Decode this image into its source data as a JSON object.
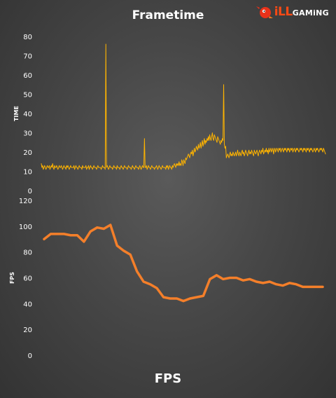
{
  "logo": {
    "prefix": "iLL",
    "suffix": "GAMiNG"
  },
  "chart_data": [
    {
      "type": "line",
      "title": "Frametime",
      "ylabel": "TIME",
      "xlabel": "",
      "ylim": [
        0,
        80
      ],
      "yticks": [
        0,
        10,
        20,
        30,
        40,
        50,
        60,
        70,
        80
      ],
      "grid": false,
      "legend": "none",
      "color": "#ffb400",
      "series": [
        {
          "values": [
            14,
            12,
            13,
            11,
            12,
            13,
            12,
            11,
            12,
            13,
            12,
            12,
            13,
            11,
            12,
            13,
            12,
            14,
            12,
            11,
            13,
            12,
            12,
            13,
            12,
            11,
            12,
            13,
            12,
            12,
            13,
            12,
            11,
            12,
            13,
            12,
            12,
            11,
            13,
            12,
            13,
            12,
            11,
            12,
            13,
            12,
            12,
            12,
            12,
            13,
            11,
            12,
            13,
            12,
            12,
            11,
            12,
            13,
            12,
            12,
            12,
            11,
            13,
            12,
            12,
            12,
            12,
            13,
            11,
            12,
            12,
            13,
            11,
            12,
            13,
            12,
            12,
            11,
            12,
            13,
            12,
            12,
            12,
            11,
            12,
            13,
            12,
            12,
            12,
            12,
            11,
            12,
            13,
            12,
            12,
            12,
            11,
            76,
            12,
            13,
            12,
            11,
            12,
            13,
            12,
            12,
            12,
            11,
            12,
            13,
            12,
            12,
            12,
            11,
            13,
            12,
            12,
            12,
            11,
            12,
            13,
            12,
            12,
            11,
            12,
            13,
            12,
            12,
            12,
            11,
            12,
            13,
            12,
            12,
            12,
            11,
            12,
            13,
            12,
            12,
            11,
            12,
            13,
            12,
            12,
            12,
            11,
            12,
            13,
            12,
            11,
            12,
            13,
            12,
            12,
            27,
            12,
            12,
            13,
            11,
            12,
            13,
            12,
            12,
            11,
            12,
            13,
            12,
            12,
            12,
            11,
            12,
            12,
            13,
            12,
            11,
            12,
            13,
            12,
            12,
            11,
            12,
            13,
            12,
            12,
            12,
            12,
            11,
            13,
            12,
            13,
            11,
            12,
            13,
            12,
            12,
            11,
            13,
            12,
            13,
            14,
            13,
            12,
            14,
            13,
            14,
            13,
            15,
            13,
            14,
            13,
            16,
            15,
            13,
            16,
            15,
            14,
            17,
            16,
            17,
            18,
            19,
            18,
            17,
            19,
            20,
            19,
            21,
            18,
            20,
            22,
            20,
            21,
            23,
            22,
            21,
            24,
            22,
            23,
            25,
            22,
            24,
            26,
            23,
            25,
            27,
            24,
            26,
            25,
            27,
            26,
            28,
            26,
            29,
            27,
            26,
            28,
            30,
            27,
            26,
            29,
            28,
            27,
            26,
            25,
            28,
            27,
            26,
            25,
            24,
            26,
            25,
            27,
            26,
            55,
            24,
            22,
            23,
            17,
            18,
            19,
            18,
            17,
            19,
            20,
            18,
            19,
            18,
            20,
            19,
            18,
            19,
            20,
            18,
            19,
            21,
            19,
            18,
            20,
            19,
            18,
            20,
            21,
            19,
            20,
            18,
            19,
            21,
            20,
            19,
            18,
            20,
            21,
            19,
            20,
            19,
            21,
            20,
            19,
            18,
            21,
            20,
            19,
            20,
            21,
            19,
            18,
            20,
            21,
            20,
            19,
            21,
            20,
            22,
            19,
            20,
            21,
            20,
            22,
            20,
            21,
            19,
            22,
            20,
            21,
            22,
            20,
            21,
            22,
            19,
            21,
            22,
            20,
            21,
            22,
            21,
            20,
            22,
            21,
            22,
            20,
            21,
            22,
            21,
            20,
            22,
            21,
            22,
            21,
            20,
            22,
            21,
            22,
            20,
            21,
            22,
            21,
            22,
            20,
            21,
            22,
            21,
            20,
            22,
            21,
            22,
            21,
            20,
            21,
            22,
            21,
            22,
            21,
            20,
            22,
            21,
            22,
            21,
            20,
            22,
            21,
            22,
            21,
            20,
            22,
            21,
            22,
            21,
            20,
            21,
            22,
            21,
            20,
            22,
            21,
            22,
            21,
            20,
            21,
            22,
            21,
            22,
            21,
            20,
            22,
            21,
            20,
            19
          ]
        }
      ]
    },
    {
      "type": "line",
      "title": "FPS",
      "ylabel": "FPS",
      "xlabel": "",
      "ylim": [
        0,
        120
      ],
      "yticks": [
        0,
        20,
        40,
        60,
        80,
        100,
        120
      ],
      "grid": false,
      "legend": "none",
      "color": "#f47f2a",
      "series": [
        {
          "values": [
            90,
            94,
            94,
            94,
            93,
            93,
            88,
            96,
            99,
            98,
            101,
            85,
            81,
            78,
            65,
            57,
            55,
            52,
            45,
            44,
            44,
            42,
            44,
            45,
            46,
            59,
            62,
            59,
            60,
            60,
            58,
            59,
            57,
            56,
            57,
            55,
            54,
            56,
            55,
            53,
            53,
            53,
            53
          ]
        }
      ]
    }
  ]
}
